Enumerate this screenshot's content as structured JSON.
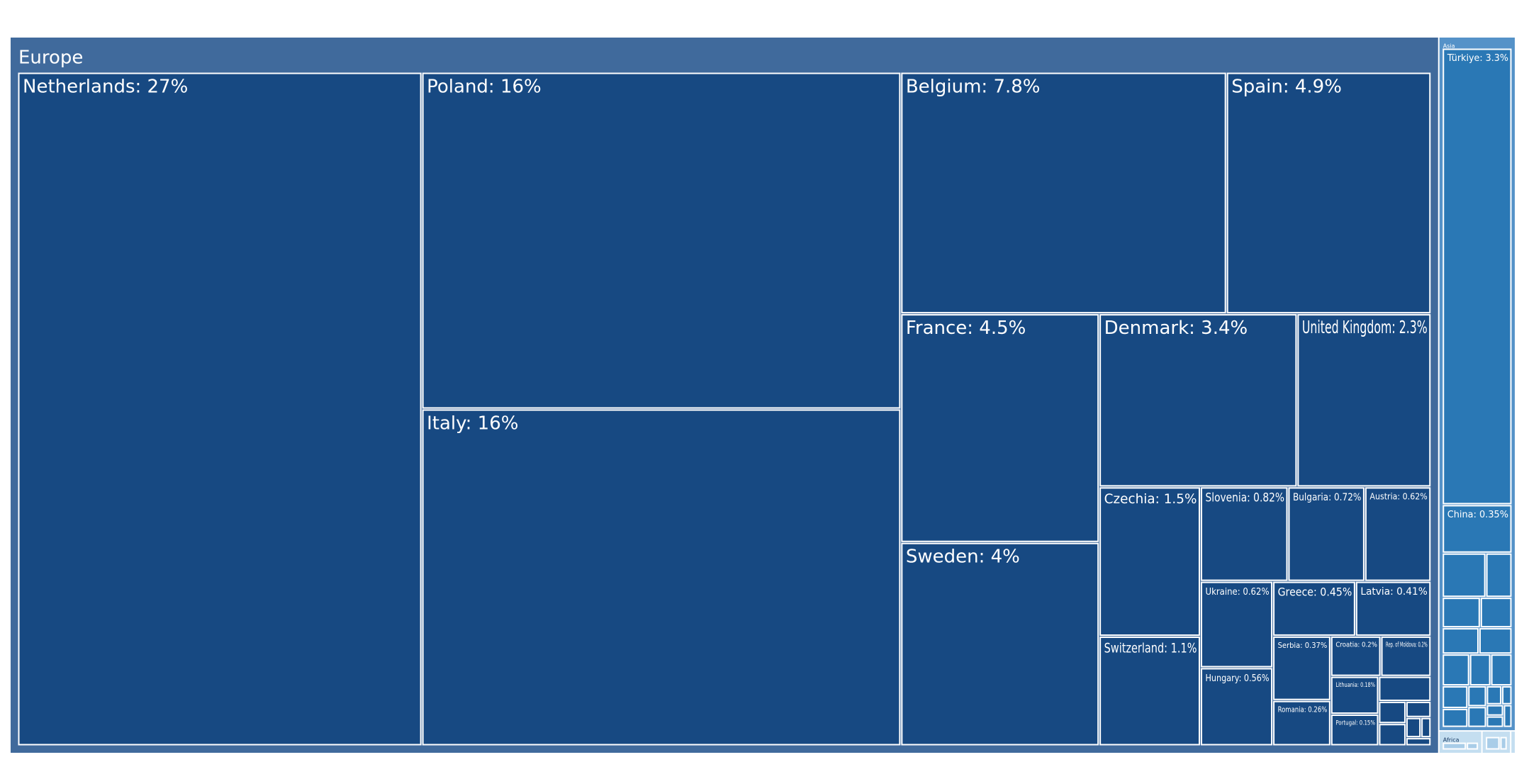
{
  "chart_data": {
    "type": "treemap",
    "title": "",
    "colors": {
      "Europe": "#406a9c",
      "Asia": "#5592c8",
      "Africa": "#c4def0",
      "europe_leaf": "#174982",
      "asia_leaf": "#2a78b5",
      "other_leaf": "#a9cde8",
      "border": "#ffffff"
    },
    "groups": [
      {
        "name": "Europe",
        "items": [
          {
            "name": "Netherlands",
            "label": "Netherlands: 27%",
            "value": 27
          },
          {
            "name": "Poland",
            "label": "Poland: 16%",
            "value": 16
          },
          {
            "name": "Italy",
            "label": "Italy: 16%",
            "value": 16
          },
          {
            "name": "Belgium",
            "label": "Belgium: 7.8%",
            "value": 7.8
          },
          {
            "name": "Spain",
            "label": "Spain: 4.9%",
            "value": 4.9
          },
          {
            "name": "France",
            "label": "France: 4.5%",
            "value": 4.5
          },
          {
            "name": "Sweden",
            "label": "Sweden: 4%",
            "value": 4
          },
          {
            "name": "Denmark",
            "label": "Denmark: 3.4%",
            "value": 3.4
          },
          {
            "name": "United Kingdom",
            "label": "United Kingdom: 2.3%",
            "value": 2.3
          },
          {
            "name": "Czechia",
            "label": "Czechia: 1.5%",
            "value": 1.5
          },
          {
            "name": "Switzerland",
            "label": "Switzerland: 1.1%",
            "value": 1.1
          },
          {
            "name": "Slovenia",
            "label": "Slovenia: 0.82%",
            "value": 0.82
          },
          {
            "name": "Bulgaria",
            "label": "Bulgaria: 0.72%",
            "value": 0.72
          },
          {
            "name": "Austria",
            "label": "Austria: 0.62%",
            "value": 0.62
          },
          {
            "name": "Ukraine",
            "label": "Ukraine: 0.62%",
            "value": 0.62
          },
          {
            "name": "Hungary",
            "label": "Hungary: 0.56%",
            "value": 0.56
          },
          {
            "name": "Greece",
            "label": "Greece: 0.45%",
            "value": 0.45
          },
          {
            "name": "Latvia",
            "label": "Latvia: 0.41%",
            "value": 0.41
          },
          {
            "name": "Serbia",
            "label": "Serbia: 0.37%",
            "value": 0.37
          },
          {
            "name": "Romania",
            "label": "Romania: 0.26%",
            "value": 0.26
          },
          {
            "name": "Croatia",
            "label": "Croatia: 0.2%",
            "value": 0.2
          },
          {
            "name": "Rep. of Moldova",
            "label": "Rep. of Moldova: 0.2%",
            "value": 0.2
          },
          {
            "name": "Lithuania",
            "label": "Lithuania: 0.18%",
            "value": 0.18
          },
          {
            "name": "Portugal",
            "label": "Portugal: 0.15%",
            "value": 0.15
          },
          {
            "name": "",
            "label": "",
            "value": 0.13
          },
          {
            "name": "",
            "label": "",
            "value": 0.06
          },
          {
            "name": "",
            "label": "",
            "value": 0.06
          },
          {
            "name": "",
            "label": "",
            "value": 0.04
          },
          {
            "name": "",
            "label": "",
            "value": 0.03
          },
          {
            "name": "",
            "label": "",
            "value": 0.02
          },
          {
            "name": "",
            "label": "",
            "value": 0.02
          }
        ]
      },
      {
        "name": "Asia",
        "items": [
          {
            "name": "Türkiye",
            "label": "Türkiye: 3.3%",
            "value": 3.3
          },
          {
            "name": "China",
            "label": "China: 0.35%",
            "value": 0.35
          },
          {
            "name": "",
            "label": "",
            "value": 0.2
          },
          {
            "name": "",
            "label": "",
            "value": 0.12
          },
          {
            "name": "",
            "label": "",
            "value": 0.12
          },
          {
            "name": "",
            "label": "",
            "value": 0.1
          },
          {
            "name": "",
            "label": "",
            "value": 0.1
          },
          {
            "name": "",
            "label": "",
            "value": 0.09
          },
          {
            "name": "",
            "label": "",
            "value": 0.09
          },
          {
            "name": "",
            "label": "",
            "value": 0.07
          },
          {
            "name": "",
            "label": "",
            "value": 0.07
          },
          {
            "name": "",
            "label": "",
            "value": 0.06
          },
          {
            "name": "",
            "label": "",
            "value": 0.05
          },
          {
            "name": "",
            "label": "",
            "value": 0.04
          },
          {
            "name": "",
            "label": "",
            "value": 0.04
          },
          {
            "name": "",
            "label": "",
            "value": 0.03
          },
          {
            "name": "",
            "label": "",
            "value": 0.02
          },
          {
            "name": "",
            "label": "",
            "value": 0.02
          },
          {
            "name": "",
            "label": "",
            "value": 0.02
          },
          {
            "name": "",
            "label": "",
            "value": 0.02
          }
        ]
      },
      {
        "name": "Africa",
        "items": [
          {
            "name": "",
            "label": "",
            "value": 0.06
          },
          {
            "name": "",
            "label": "",
            "value": 0.03
          }
        ]
      },
      {
        "name": "",
        "items": [
          {
            "name": "",
            "label": "",
            "value": 0.04
          },
          {
            "name": "",
            "label": "",
            "value": 0.02
          }
        ]
      },
      {
        "name": "",
        "items": [
          {
            "name": "",
            "label": "",
            "value": 0.01
          }
        ]
      }
    ]
  }
}
